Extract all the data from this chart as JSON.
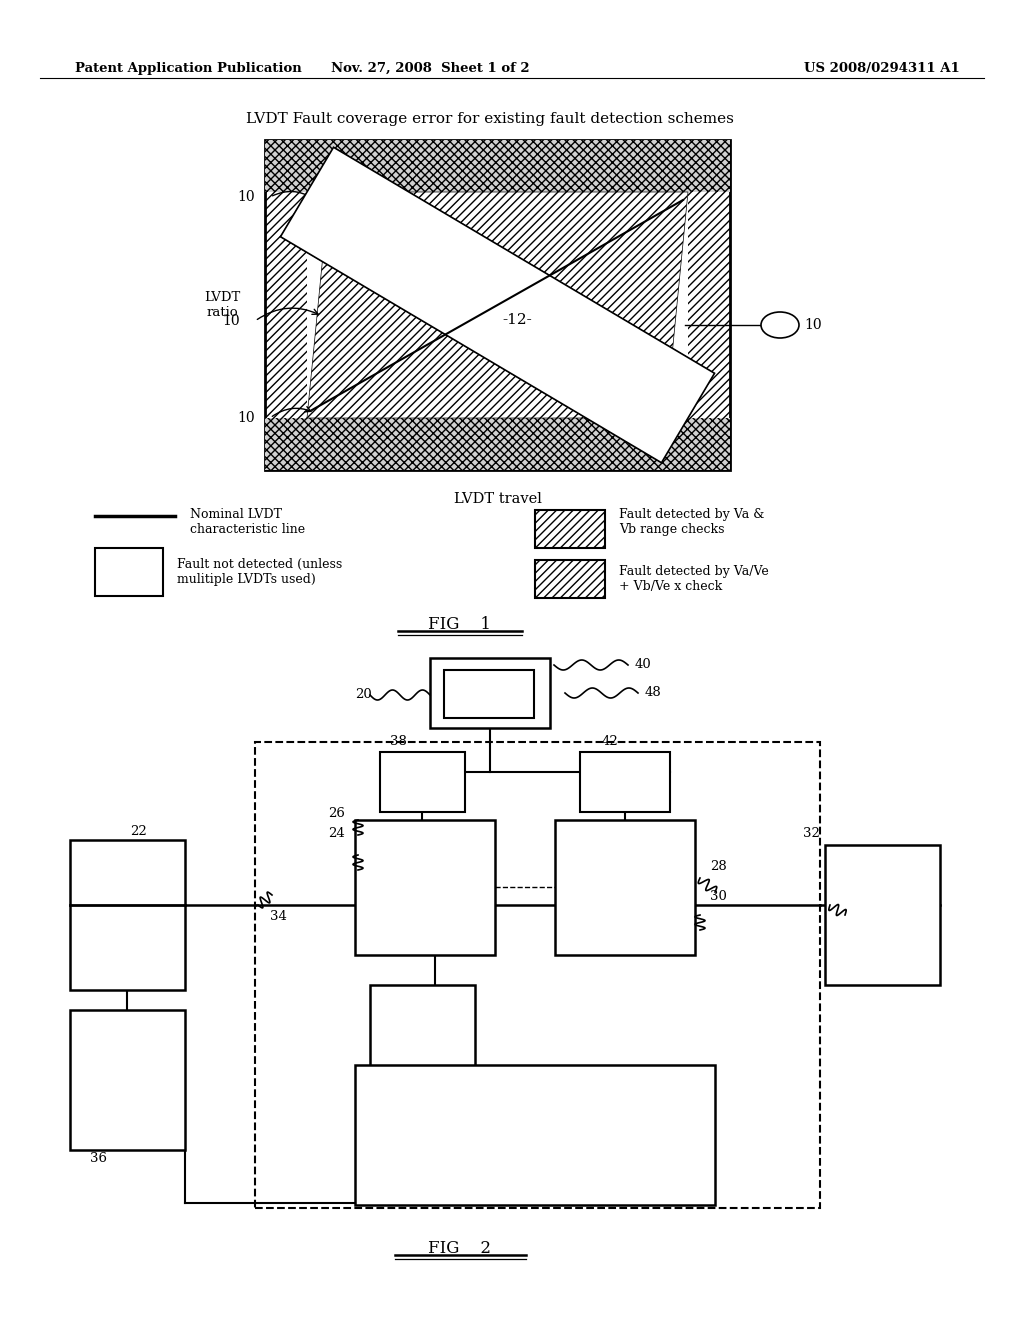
{
  "bg_color": "#ffffff",
  "header_left": "Patent Application Publication",
  "header_center": "Nov. 27, 2008  Sheet 1 of 2",
  "header_right": "US 2008/0294311 A1",
  "fig1_title": "LVDT Fault coverage error for existing fault detection schemes",
  "fig1_xlabel": "LVDT travel",
  "fig1_center_label": "-12-",
  "fig1_label": "FIG    1",
  "fig2_label": "FIG    2",
  "legend_line_text": "Nominal LVDT\ncharacteristic line",
  "legend_empty_text": "Fault not detected (unless\nmulitiple LVDTs used)",
  "legend_hatch1_text": "Fault detected by Va &\nVb range checks",
  "legend_hatch2_text": "Fault detected by Va/Ve\n+ Vb/Ve x check"
}
